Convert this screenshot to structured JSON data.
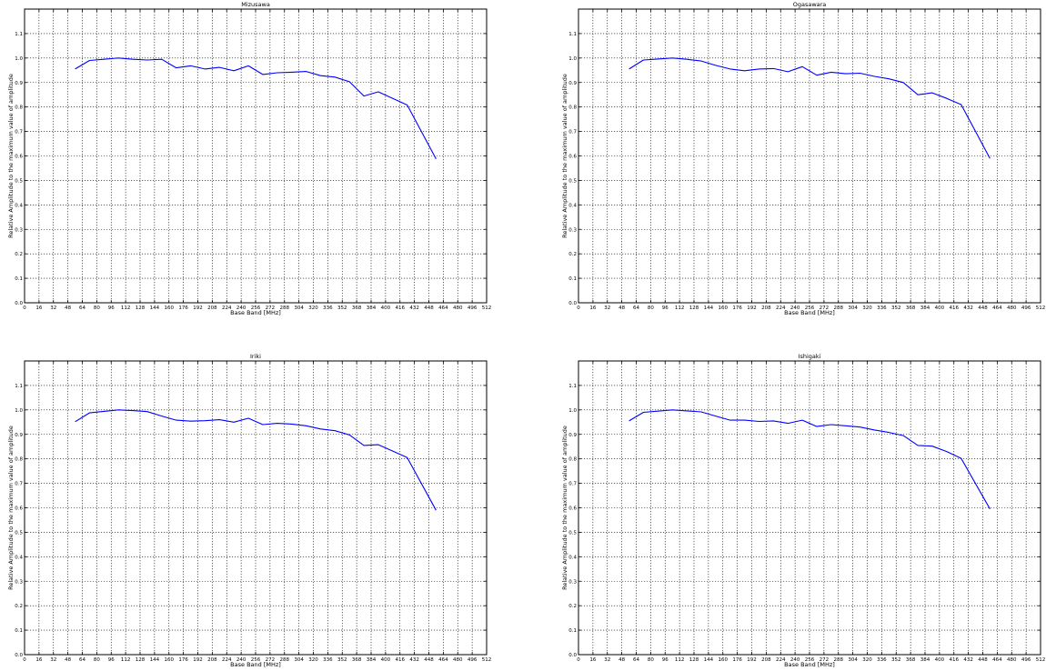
{
  "figure": {
    "background": "#ffffff",
    "line_color": "#0000ff",
    "grid_style": "dotted-black"
  },
  "chart_data": [
    {
      "type": "line",
      "title": "Mizusawa",
      "xlabel": "Base Band [MHz]",
      "ylabel": "Relative Amplitude to the maximum value of amplitude",
      "xlim": [
        0,
        512
      ],
      "ylim": [
        0,
        1.2
      ],
      "xticks": [
        "0",
        "16",
        "32",
        "48",
        "64",
        "80",
        "96",
        "112",
        "128",
        "144",
        "160",
        "176",
        "192",
        "208",
        "224",
        "240",
        "256",
        "272",
        "288",
        "304",
        "320",
        "336",
        "352",
        "368",
        "384",
        "400",
        "416",
        "432",
        "448",
        "464",
        "480",
        "496",
        "512"
      ],
      "yticks": [
        "0.0",
        "0.1",
        "0.2",
        "0.3",
        "0.4",
        "0.5",
        "0.6",
        "0.7",
        "0.8",
        "0.9",
        "1.0",
        "1.1"
      ],
      "grid": true,
      "x": [
        56,
        72,
        88,
        104,
        120,
        136,
        152,
        168,
        184,
        200,
        216,
        232,
        248,
        264,
        280,
        296,
        312,
        328,
        344,
        360,
        376,
        392,
        408,
        424,
        456
      ],
      "y": [
        0.955,
        0.99,
        0.995,
        1.0,
        0.995,
        0.992,
        0.995,
        0.96,
        0.968,
        0.955,
        0.962,
        0.948,
        0.968,
        0.933,
        0.94,
        0.942,
        0.945,
        0.928,
        0.922,
        0.903,
        0.845,
        0.862,
        0.835,
        0.808,
        0.588
      ]
    },
    {
      "type": "line",
      "title": "Ogasawara",
      "xlabel": "Base Band [MHz]",
      "ylabel": "Relative Amplitude to the maximum value of amplitude",
      "xlim": [
        0,
        512
      ],
      "ylim": [
        0,
        1.2
      ],
      "xticks": [
        "0",
        "16",
        "32",
        "48",
        "64",
        "80",
        "96",
        "112",
        "128",
        "144",
        "160",
        "176",
        "192",
        "208",
        "224",
        "240",
        "256",
        "272",
        "288",
        "304",
        "320",
        "336",
        "352",
        "368",
        "384",
        "400",
        "416",
        "432",
        "448",
        "464",
        "480",
        "496",
        "512"
      ],
      "yticks": [
        "0.0",
        "0.1",
        "0.2",
        "0.3",
        "0.4",
        "0.5",
        "0.6",
        "0.7",
        "0.8",
        "0.9",
        "1.0",
        "1.1"
      ],
      "grid": true,
      "x": [
        56,
        72,
        88,
        104,
        120,
        136,
        152,
        168,
        184,
        200,
        216,
        232,
        248,
        264,
        280,
        296,
        312,
        328,
        344,
        360,
        376,
        392,
        408,
        424,
        456
      ],
      "y": [
        0.955,
        0.992,
        0.996,
        1.0,
        0.995,
        0.988,
        0.97,
        0.955,
        0.948,
        0.955,
        0.957,
        0.944,
        0.965,
        0.93,
        0.942,
        0.936,
        0.938,
        0.925,
        0.915,
        0.9,
        0.85,
        0.858,
        0.835,
        0.81,
        0.59
      ]
    },
    {
      "type": "line",
      "title": "Iriki",
      "xlabel": "Base Band [MHz]",
      "ylabel": "Relative Amplitude to the maximum value of amplitude",
      "xlim": [
        0,
        512
      ],
      "ylim": [
        0,
        1.2
      ],
      "xticks": [
        "0",
        "16",
        "32",
        "48",
        "64",
        "80",
        "96",
        "112",
        "128",
        "144",
        "160",
        "176",
        "192",
        "208",
        "224",
        "240",
        "256",
        "272",
        "288",
        "304",
        "320",
        "336",
        "352",
        "368",
        "384",
        "400",
        "416",
        "432",
        "448",
        "464",
        "480",
        "496",
        "512"
      ],
      "yticks": [
        "0.0",
        "0.1",
        "0.2",
        "0.3",
        "0.4",
        "0.5",
        "0.6",
        "0.7",
        "0.8",
        "0.9",
        "1.0",
        "1.1"
      ],
      "grid": true,
      "x": [
        56,
        72,
        88,
        104,
        120,
        136,
        152,
        168,
        184,
        200,
        216,
        232,
        248,
        264,
        280,
        296,
        312,
        328,
        344,
        360,
        376,
        392,
        408,
        424,
        456
      ],
      "y": [
        0.952,
        0.988,
        0.994,
        1.0,
        0.997,
        0.993,
        0.975,
        0.958,
        0.954,
        0.956,
        0.96,
        0.95,
        0.966,
        0.94,
        0.945,
        0.942,
        0.935,
        0.922,
        0.915,
        0.898,
        0.855,
        0.858,
        0.832,
        0.805,
        0.59
      ]
    },
    {
      "type": "line",
      "title": "Ishigaki",
      "xlabel": "Base Band [MHz]",
      "ylabel": "Relative Amplitude to the maximum value of amplitude",
      "xlim": [
        0,
        512
      ],
      "ylim": [
        0,
        1.2
      ],
      "xticks": [
        "0",
        "16",
        "32",
        "48",
        "64",
        "80",
        "96",
        "112",
        "128",
        "144",
        "160",
        "176",
        "192",
        "208",
        "224",
        "240",
        "256",
        "272",
        "288",
        "304",
        "320",
        "336",
        "352",
        "368",
        "384",
        "400",
        "416",
        "432",
        "448",
        "464",
        "480",
        "496",
        "512"
      ],
      "yticks": [
        "0.0",
        "0.1",
        "0.2",
        "0.3",
        "0.4",
        "0.5",
        "0.6",
        "0.7",
        "0.8",
        "0.9",
        "1.0",
        "1.1"
      ],
      "grid": true,
      "x": [
        56,
        72,
        88,
        104,
        120,
        136,
        152,
        168,
        184,
        200,
        216,
        232,
        248,
        264,
        280,
        296,
        312,
        328,
        344,
        360,
        376,
        392,
        408,
        424,
        456
      ],
      "y": [
        0.955,
        0.99,
        0.995,
        1.0,
        0.996,
        0.992,
        0.975,
        0.958,
        0.958,
        0.953,
        0.955,
        0.945,
        0.958,
        0.932,
        0.94,
        0.935,
        0.93,
        0.918,
        0.908,
        0.895,
        0.855,
        0.852,
        0.83,
        0.802,
        0.595
      ]
    }
  ]
}
